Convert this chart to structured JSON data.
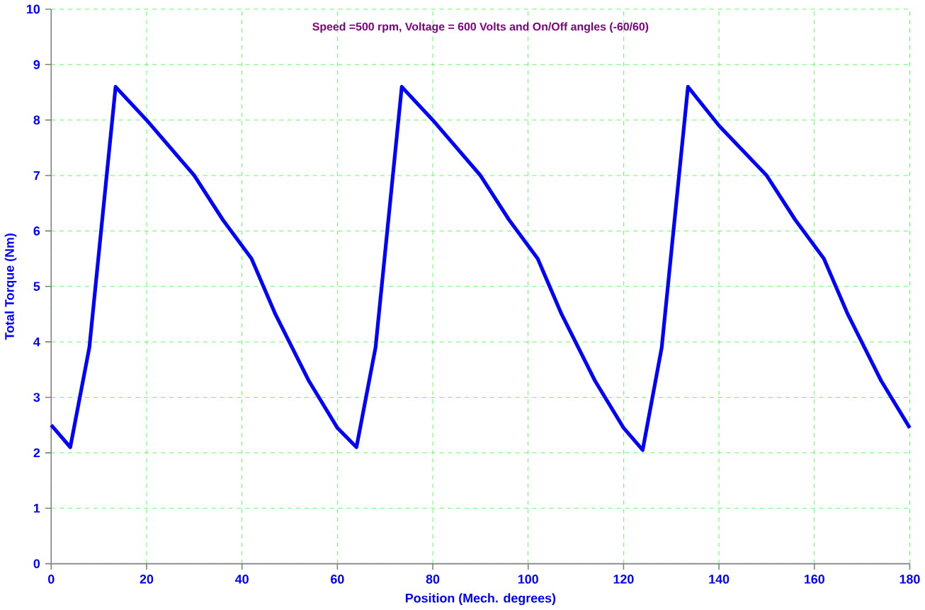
{
  "chart_data": {
    "type": "line",
    "title": "Speed =500 rpm, Voltage = 600 Volts and On/Off angles (-60/60)",
    "xlabel": "Position (Mech. degrees)",
    "ylabel": "Total Torque (Nm)",
    "x": [
      0,
      4,
      8,
      13.5,
      20,
      30,
      36,
      42,
      47,
      54,
      60,
      64,
      68,
      73.5,
      80,
      90,
      96,
      102,
      107,
      114,
      120,
      124,
      128,
      133.5,
      140,
      150,
      156,
      162,
      167,
      174,
      180
    ],
    "series": [
      {
        "color": "#0000ff",
        "values": [
          2.5,
          2.1,
          3.9,
          8.6,
          8.0,
          7.0,
          6.2,
          5.5,
          4.5,
          3.3,
          2.45,
          2.1,
          3.9,
          8.6,
          8.0,
          7.0,
          6.2,
          5.5,
          4.5,
          3.3,
          2.45,
          2.05,
          3.9,
          8.6,
          7.9,
          7.0,
          6.2,
          5.5,
          4.5,
          3.3,
          2.45
        ]
      }
    ],
    "xlim": [
      0,
      180
    ],
    "ylim": [
      0,
      10
    ],
    "xticks": [
      0,
      20,
      40,
      60,
      80,
      100,
      120,
      140,
      160,
      180
    ],
    "yticks": [
      0,
      1,
      2,
      3,
      4,
      5,
      6,
      7,
      8,
      9,
      10
    ],
    "grid": true,
    "marker": "none",
    "line_style": "solid"
  }
}
